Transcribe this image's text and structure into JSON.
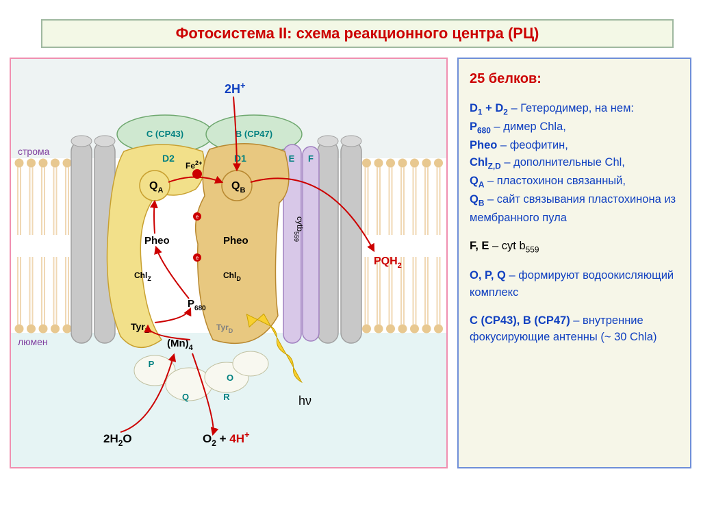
{
  "title": "Фотосистема II: схема реакционного центра (РЦ)",
  "title_border_color": "#9fb8a0",
  "title_bg_color": "#f3f8e6",
  "title_text_color": "#cc0000",
  "diagram_border_color": "#f08fb0",
  "diagram_bg_color": "#f6f6e8",
  "legend_border_color": "#6e8ed8",
  "legend_bg_color": "#f6f6e8",
  "colors": {
    "membrane_lipid": "#f0d8b4",
    "membrane_head": "#e8c890",
    "stroma_bg": "#eef3f3",
    "lumen_bg": "#e6f4f4",
    "protein_gray": "#c8c8c8",
    "protein_gray_stroke": "#a0a0a0",
    "cp43_fill": "#cfe8d0",
    "cp43_stroke": "#6fa86f",
    "cp47_fill": "#cfe8d0",
    "d2_fill": "#f2e08a",
    "d2_stroke": "#c8a030",
    "d1_fill": "#e8c880",
    "d1_stroke": "#b88830",
    "ef_fill": "#d8c8e8",
    "ef_stroke": "#a080c0",
    "opqr_fill": "#f8f8f0",
    "opqr_stroke": "#c0c0a0",
    "arrow_red": "#cc0000",
    "light_yellow": "#f8d030",
    "text_teal": "#008080",
    "text_black": "#000000",
    "text_red": "#cc0000",
    "text_purple": "#8040a0",
    "text_blue": "#1040c0"
  },
  "labels": {
    "stroma": "строма",
    "lumen": "люмен",
    "two_h_plus": "2H",
    "cp43": "C (CP43)",
    "cp47": "B (CP47)",
    "d1": "D1",
    "d2": "D2",
    "e": "E",
    "f": "F",
    "qa": "Q",
    "qa_sub": "A",
    "qb": "Q",
    "qb_sub": "B",
    "fe": "Fe",
    "fe_sup": "2+",
    "pheo": "Pheo",
    "chlz": "Chl",
    "chlz_sub": "Z",
    "chld": "Chl",
    "chld_sub": "D",
    "p680": "P",
    "p680_sub": "680",
    "tyrz": "Tyr",
    "tyrz_sub": "Z",
    "tyrd": "Tyr",
    "tyrd_sub": "D",
    "mn4": "(Mn)",
    "mn4_sub": "4",
    "p": "P",
    "o": "O",
    "q": "Q",
    "r": "R",
    "cytb559": "cytb",
    "cytb559_sub": "559",
    "pqh2": "PQH",
    "pqh2_sub": "2",
    "hv": "hν",
    "h2o_in": "2H",
    "h2o_two": "2",
    "h2o_o": "O",
    "o2_out": "O",
    "o2_two": "2",
    "four_h": "4H"
  },
  "legend": {
    "heading": "25 белков:",
    "line1a": "D",
    "line1b": " + D",
    "line1c": " – Гетеродимер, на нем:",
    "line2a": "P",
    "line2b": " – димер Chla,",
    "line3a": "Pheo",
    "line3b": " – феофитин,",
    "line4a": "Chl",
    "line4b": " – дополнительные Chl,",
    "line5a": "Q",
    "line5b": " – пластохинон связанный,",
    "line6a": "Q",
    "line6b": " – сайт связывания пластохинона из мембранного пула",
    "line7a": "F, E",
    "line7b": " – cyt b",
    "line8a": "O, P, Q",
    "line8b": " – формируют водоокисляющий комплекс",
    "line9a": "C (CP43), B (CP47)",
    "line9b": " – внутренние фокусирующие антенны (~ 30 Chla)"
  }
}
